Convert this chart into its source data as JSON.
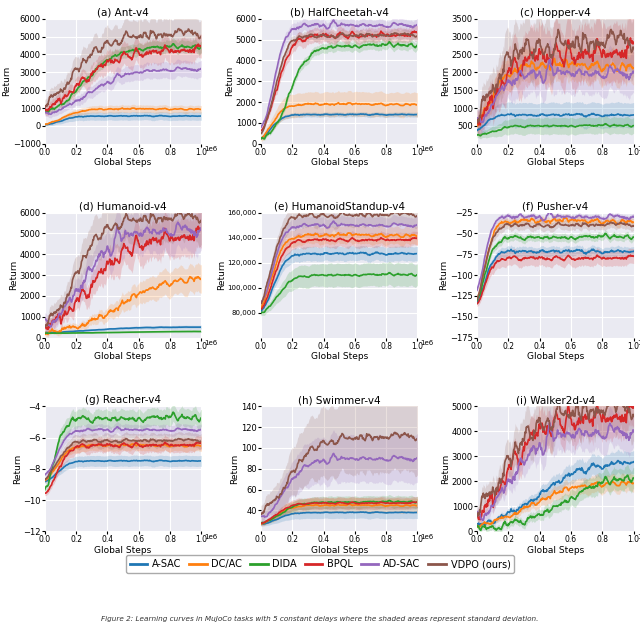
{
  "subplots": [
    {
      "title": "(a) Ant-v4",
      "ylabel": "Return",
      "xlabel": "Global Steps",
      "ylim": [
        -1000,
        6000
      ],
      "yticks": [
        -1000,
        0,
        1000,
        2000,
        3000,
        4000,
        5000,
        6000
      ],
      "xlim": [
        0,
        1.0
      ]
    },
    {
      "title": "(b) HalfCheetah-v4",
      "ylabel": "Return",
      "xlabel": "Global Steps",
      "ylim": [
        0,
        6000
      ],
      "yticks": [
        0,
        1000,
        2000,
        3000,
        4000,
        5000,
        6000
      ],
      "xlim": [
        0,
        1.0
      ]
    },
    {
      "title": "(c) Hopper-v4",
      "ylabel": "Return",
      "xlabel": "Global Steps",
      "ylim": [
        0,
        3500
      ],
      "yticks": [
        500,
        1000,
        1500,
        2000,
        2500,
        3000,
        3500
      ],
      "xlim": [
        0,
        1.0
      ]
    },
    {
      "title": "(d) Humanoid-v4",
      "ylabel": "Return",
      "xlabel": "Global Steps",
      "ylim": [
        0,
        6000
      ],
      "yticks": [
        0,
        1000,
        2000,
        3000,
        4000,
        5000,
        6000
      ],
      "xlim": [
        0,
        1.0
      ]
    },
    {
      "title": "(e) HumanoidStandup-v4",
      "ylabel": "Return",
      "xlabel": "Global Steps",
      "ylim": [
        60000,
        160000
      ],
      "yticks": [
        80000,
        100000,
        120000,
        140000,
        160000
      ],
      "xlim": [
        0,
        1.0
      ]
    },
    {
      "title": "(f) Pusher-v4",
      "ylabel": "Return",
      "xlabel": "Global Steps",
      "ylim": [
        -175,
        -25
      ],
      "yticks": [
        -175,
        -150,
        -125,
        -100,
        -75,
        -50,
        -25
      ],
      "xlim": [
        0,
        1.0
      ]
    },
    {
      "title": "(g) Reacher-v4",
      "ylabel": "Return",
      "xlabel": "Global Steps",
      "ylim": [
        -12,
        -4
      ],
      "yticks": [
        -12,
        -10,
        -8,
        -6,
        -4
      ],
      "xlim": [
        0,
        1.0
      ]
    },
    {
      "title": "(h) Swimmer-v4",
      "ylabel": "Return",
      "xlabel": "Global Steps",
      "ylim": [
        20,
        140
      ],
      "yticks": [
        40,
        60,
        80,
        100,
        120,
        140
      ],
      "xlim": [
        0,
        1.0
      ]
    },
    {
      "title": "(i) Walker2d-v4",
      "ylabel": "Return",
      "xlabel": "Global Steps",
      "ylim": [
        0,
        5000
      ],
      "yticks": [
        0,
        1000,
        2000,
        3000,
        4000,
        5000
      ],
      "xlim": [
        0,
        1.0
      ]
    }
  ],
  "algorithms": [
    "A-SAC",
    "DC/AC",
    "DIDA",
    "BPQL",
    "AD-SAC",
    "VDPO (ours)"
  ],
  "colors": {
    "A-SAC": "#1f77b4",
    "DC/AC": "#ff7f0e",
    "DIDA": "#2ca02c",
    "BPQL": "#d62728",
    "AD-SAC": "#9467bd",
    "VDPO (ours)": "#8c564b"
  },
  "alpha_fill": 0.18,
  "line_width": 1.2,
  "bg_color": "#eaeaf2",
  "grid_color": "white"
}
